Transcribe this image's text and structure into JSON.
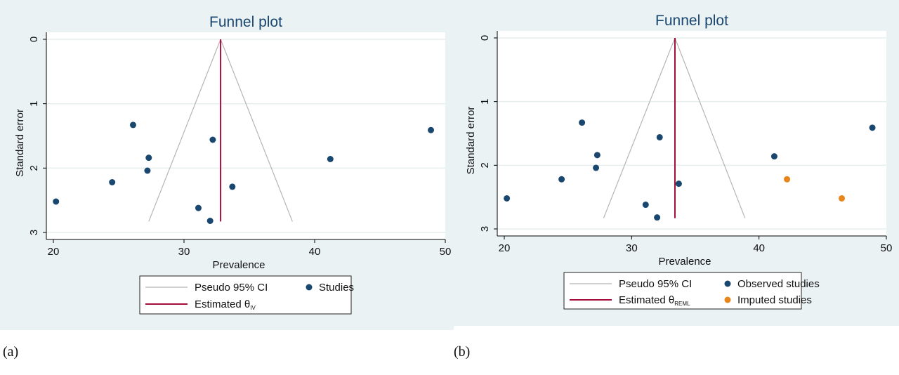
{
  "panel_labels": [
    "(a)",
    "(b)"
  ],
  "colors": {
    "panel_bg": "#eaf2f3",
    "plot_bg": "#ffffff",
    "grid": "#e6eeee",
    "title": "#1a476f",
    "observed": "#1a476f",
    "imputed": "#e8861a",
    "ci_line": "#b5b5b5",
    "estimate_line": "#a50d3a",
    "axis": "#000000"
  },
  "chart_data": [
    {
      "type": "scatter",
      "title": "Funnel plot",
      "xlabel": "Prevalence",
      "ylabel": "Standard error",
      "xlim": [
        20,
        50
      ],
      "ylim": [
        0,
        3
      ],
      "y_reversed": true,
      "x_ticks": [
        20,
        30,
        40,
        50
      ],
      "y_ticks": [
        0,
        1,
        2,
        3
      ],
      "grid": true,
      "estimate": 32.8,
      "ci_apex": [
        32.8,
        0
      ],
      "ci_base_se": 2.83,
      "ci_base_x": [
        27.3,
        38.3
      ],
      "legend": {
        "position": "bottom",
        "entries": [
          {
            "kind": "line",
            "role": "ci",
            "label": "Pseudo 95% CI"
          },
          {
            "kind": "dot",
            "role": "observed",
            "label": "Studies"
          },
          {
            "kind": "line",
            "role": "estimate",
            "label": "Estimated θ",
            "sub": "IV"
          }
        ]
      },
      "series": [
        {
          "role": "observed",
          "points": [
            {
              "x": 26.1,
              "y": 1.33
            },
            {
              "x": 48.9,
              "y": 1.41
            },
            {
              "x": 32.2,
              "y": 1.56
            },
            {
              "x": 27.3,
              "y": 1.84
            },
            {
              "x": 41.2,
              "y": 1.86
            },
            {
              "x": 27.2,
              "y": 2.04
            },
            {
              "x": 24.5,
              "y": 2.22
            },
            {
              "x": 33.7,
              "y": 2.29
            },
            {
              "x": 20.2,
              "y": 2.52
            },
            {
              "x": 31.1,
              "y": 2.62
            },
            {
              "x": 32.0,
              "y": 2.82
            }
          ]
        }
      ]
    },
    {
      "type": "scatter",
      "title": "Funnel plot",
      "xlabel": "Prevalence",
      "ylabel": "Standard error",
      "xlim": [
        20,
        50
      ],
      "ylim": [
        0,
        3
      ],
      "y_reversed": true,
      "x_ticks": [
        20,
        30,
        40,
        50
      ],
      "y_ticks": [
        0,
        1,
        2,
        3
      ],
      "grid": true,
      "estimate": 33.4,
      "ci_apex": [
        33.4,
        0
      ],
      "ci_base_se": 2.83,
      "ci_base_x": [
        27.8,
        38.9
      ],
      "legend": {
        "position": "bottom",
        "entries": [
          {
            "kind": "line",
            "role": "ci",
            "label": "Pseudo 95% CI"
          },
          {
            "kind": "dot",
            "role": "observed",
            "label": "Observed studies"
          },
          {
            "kind": "line",
            "role": "estimate",
            "label": "Estimated θ",
            "sub": "REML"
          },
          {
            "kind": "dot",
            "role": "imputed",
            "label": "Imputed studies"
          }
        ]
      },
      "series": [
        {
          "role": "observed",
          "points": [
            {
              "x": 26.1,
              "y": 1.33
            },
            {
              "x": 48.9,
              "y": 1.41
            },
            {
              "x": 32.2,
              "y": 1.56
            },
            {
              "x": 27.3,
              "y": 1.84
            },
            {
              "x": 41.2,
              "y": 1.86
            },
            {
              "x": 27.2,
              "y": 2.04
            },
            {
              "x": 24.5,
              "y": 2.22
            },
            {
              "x": 33.7,
              "y": 2.29
            },
            {
              "x": 20.2,
              "y": 2.52
            },
            {
              "x": 31.1,
              "y": 2.62
            },
            {
              "x": 32.0,
              "y": 2.82
            }
          ]
        },
        {
          "role": "imputed",
          "points": [
            {
              "x": 42.2,
              "y": 2.22
            },
            {
              "x": 46.5,
              "y": 2.52
            }
          ]
        }
      ]
    }
  ]
}
